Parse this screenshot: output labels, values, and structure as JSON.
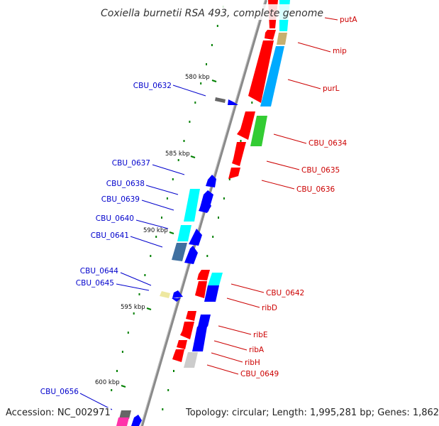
{
  "title": "Coxiella burnetii RSA 493, complete genome",
  "footer": {
    "accession": "Accession: NC_002971",
    "topology": "Topology: circular; Length: 1,995,281 bp; Genes: 1,862"
  },
  "colors": {
    "backbone": "#808080",
    "forward_label": "#0000cc",
    "reverse_label": "#cc0000",
    "tick": "#008000",
    "red": "#ff0000",
    "blue": "#0000ff",
    "cyan": "#00ffff",
    "steel": "#4070a0",
    "green": "#33cc33",
    "tan": "#c8b070",
    "gray": "#666666",
    "lightgray": "#cccccc",
    "khaki": "#eee8a0",
    "magenta": "#ff33aa"
  },
  "ticks": [
    {
      "label": "580 kbp"
    },
    {
      "label": "585 kbp"
    },
    {
      "label": "590 kbp"
    },
    {
      "label": "595 kbp"
    },
    {
      "label": "600 kbp"
    }
  ],
  "forward_labels": [
    {
      "text": "CBU_0632"
    },
    {
      "text": "CBU_0637"
    },
    {
      "text": "CBU_0638"
    },
    {
      "text": "CBU_0639"
    },
    {
      "text": "CBU_0640"
    },
    {
      "text": "CBU_0641"
    },
    {
      "text": "CBU_0644"
    },
    {
      "text": "CBU_0645"
    },
    {
      "text": "CBU_0656"
    }
  ],
  "reverse_labels": [
    {
      "text": "putA"
    },
    {
      "text": "mip"
    },
    {
      "text": "purL"
    },
    {
      "text": "CBU_0634"
    },
    {
      "text": "CBU_0635"
    },
    {
      "text": "CBU_0636"
    },
    {
      "text": "CBU_0642"
    },
    {
      "text": "ribD"
    },
    {
      "text": "ribE"
    },
    {
      "text": "ribA"
    },
    {
      "text": "ribH"
    },
    {
      "text": "CBU_0649"
    }
  ]
}
